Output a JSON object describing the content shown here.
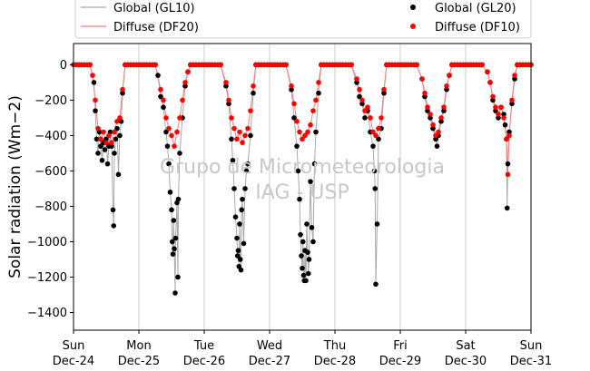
{
  "chart_data": {
    "type": "scatter",
    "ylabel": "Solar radiation (Wm−2)",
    "xlabel": "",
    "ylim": [
      -1500,
      120
    ],
    "y_ticks": [
      0,
      -200,
      -400,
      -600,
      -800,
      -1000,
      -1200,
      -1400
    ],
    "x_range": [
      "2017-12-24",
      "2017-12-31"
    ],
    "x_ticks": [
      {
        "date": "2017-12-24",
        "weekday": "Sun",
        "day": "Dec-24"
      },
      {
        "date": "2017-12-25",
        "weekday": "Mon",
        "day": "Dec-25"
      },
      {
        "date": "2017-12-26",
        "weekday": "Tue",
        "day": "Dec-26"
      },
      {
        "date": "2017-12-27",
        "weekday": "Wed",
        "day": "Dec-27"
      },
      {
        "date": "2017-12-28",
        "weekday": "Thu",
        "day": "Dec-28"
      },
      {
        "date": "2017-12-29",
        "weekday": "Fri",
        "day": "Dec-29"
      },
      {
        "date": "2017-12-30",
        "weekday": "Sat",
        "day": "Dec-30"
      },
      {
        "date": "2017-12-31",
        "weekday": "Sun",
        "day": "Dec-31"
      }
    ],
    "x_grid": true,
    "y_grid": false,
    "legend": {
      "placement": "top",
      "entries": [
        {
          "label": "Global (GL10)",
          "style": "line",
          "color": "#aaaaaa"
        },
        {
          "label": "Diffuse (DF20)",
          "style": "line",
          "color": "#f08080"
        },
        {
          "label": "Global (GL20)",
          "style": "marker",
          "color": "#000000"
        },
        {
          "label": "Diffuse (DF10)",
          "style": "marker",
          "color": "#ff0000"
        }
      ]
    },
    "watermark": [
      "Grupo de Micrometeorologia",
      "IAG - USP"
    ],
    "series": [
      {
        "name": "Global (GL20)",
        "color": "#000000",
        "kind": "marker",
        "points": [
          [
            "2017-12-24 06:00",
            0
          ],
          [
            "2017-12-24 07:30",
            -100
          ],
          [
            "2017-12-24 08:00",
            -260
          ],
          [
            "2017-12-24 08:30",
            -420
          ],
          [
            "2017-12-24 09:00",
            -500
          ],
          [
            "2017-12-24 09:30",
            -380
          ],
          [
            "2017-12-24 10:00",
            -460
          ],
          [
            "2017-12-24 10:30",
            -540
          ],
          [
            "2017-12-24 11:00",
            -440
          ],
          [
            "2017-12-24 11:30",
            -480
          ],
          [
            "2017-12-24 12:00",
            -420
          ],
          [
            "2017-12-24 12:30",
            -560
          ],
          [
            "2017-12-24 13:00",
            -460
          ],
          [
            "2017-12-24 13:30",
            -380
          ],
          [
            "2017-12-24 14:00",
            -460
          ],
          [
            "2017-12-24 14:30",
            -820
          ],
          [
            "2017-12-24 14:45",
            -910
          ],
          [
            "2017-12-24 15:00",
            -500
          ],
          [
            "2017-12-24 15:30",
            -420
          ],
          [
            "2017-12-24 16:00",
            -360
          ],
          [
            "2017-12-24 16:30",
            -620
          ],
          [
            "2017-12-24 17:00",
            -400
          ],
          [
            "2017-12-24 17:30",
            -320
          ],
          [
            "2017-12-24 18:00",
            -160
          ],
          [
            "2017-12-24 19:00",
            0
          ],
          [
            "2017-12-25 06:00",
            0
          ],
          [
            "2017-12-25 07:00",
            -60
          ],
          [
            "2017-12-25 08:00",
            -180
          ],
          [
            "2017-12-25 09:00",
            -240
          ],
          [
            "2017-12-25 10:00",
            -380
          ],
          [
            "2017-12-25 10:30",
            -460
          ],
          [
            "2017-12-25 11:00",
            -560
          ],
          [
            "2017-12-25 11:30",
            -720
          ],
          [
            "2017-12-25 12:00",
            -820
          ],
          [
            "2017-12-25 12:15",
            -1000
          ],
          [
            "2017-12-25 12:30",
            -1070
          ],
          [
            "2017-12-25 12:45",
            -880
          ],
          [
            "2017-12-25 13:00",
            -1040
          ],
          [
            "2017-12-25 13:20",
            -1290
          ],
          [
            "2017-12-25 13:30",
            -980
          ],
          [
            "2017-12-25 14:00",
            -780
          ],
          [
            "2017-12-25 14:20",
            -1200
          ],
          [
            "2017-12-25 14:30",
            -760
          ],
          [
            "2017-12-25 15:00",
            -500
          ],
          [
            "2017-12-25 16:00",
            -300
          ],
          [
            "2017-12-25 17:00",
            -120
          ],
          [
            "2017-12-25 18:00",
            -40
          ],
          [
            "2017-12-25 19:00",
            0
          ],
          [
            "2017-12-26 06:00",
            0
          ],
          [
            "2017-12-26 08:00",
            -120
          ],
          [
            "2017-12-26 09:00",
            -220
          ],
          [
            "2017-12-26 10:00",
            -420
          ],
          [
            "2017-12-26 10:30",
            -540
          ],
          [
            "2017-12-26 11:00",
            -700
          ],
          [
            "2017-12-26 11:30",
            -860
          ],
          [
            "2017-12-26 12:00",
            -980
          ],
          [
            "2017-12-26 12:15",
            -1080
          ],
          [
            "2017-12-26 12:30",
            -1050
          ],
          [
            "2017-12-26 12:45",
            -1140
          ],
          [
            "2017-12-26 13:00",
            -900
          ],
          [
            "2017-12-26 13:15",
            -1100
          ],
          [
            "2017-12-26 13:30",
            -1160
          ],
          [
            "2017-12-26 13:45",
            -820
          ],
          [
            "2017-12-26 14:00",
            -760
          ],
          [
            "2017-12-26 14:30",
            -1010
          ],
          [
            "2017-12-26 15:00",
            -700
          ],
          [
            "2017-12-26 15:30",
            -600
          ],
          [
            "2017-12-26 16:00",
            -560
          ],
          [
            "2017-12-26 17:00",
            -400
          ],
          [
            "2017-12-26 18:00",
            -160
          ],
          [
            "2017-12-26 19:00",
            0
          ],
          [
            "2017-12-27 06:00",
            0
          ],
          [
            "2017-12-27 08:00",
            -140
          ],
          [
            "2017-12-27 09:00",
            -300
          ],
          [
            "2017-12-27 10:00",
            -460
          ],
          [
            "2017-12-27 10:30",
            -600
          ],
          [
            "2017-12-27 11:00",
            -760
          ],
          [
            "2017-12-27 11:20",
            -960
          ],
          [
            "2017-12-27 11:40",
            -1080
          ],
          [
            "2017-12-27 12:00",
            -1150
          ],
          [
            "2017-12-27 12:15",
            -1000
          ],
          [
            "2017-12-27 12:30",
            -1190
          ],
          [
            "2017-12-27 12:45",
            -1220
          ],
          [
            "2017-12-27 13:00",
            -1050
          ],
          [
            "2017-12-27 13:20",
            -1220
          ],
          [
            "2017-12-27 13:40",
            -900
          ],
          [
            "2017-12-27 14:00",
            -1060
          ],
          [
            "2017-12-27 14:15",
            -1180
          ],
          [
            "2017-12-27 14:30",
            -1100
          ],
          [
            "2017-12-27 15:00",
            -660
          ],
          [
            "2017-12-27 15:30",
            -920
          ],
          [
            "2017-12-27 16:00",
            -1000
          ],
          [
            "2017-12-27 16:30",
            -560
          ],
          [
            "2017-12-27 17:00",
            -380
          ],
          [
            "2017-12-27 18:00",
            -160
          ],
          [
            "2017-12-27 19:00",
            0
          ],
          [
            "2017-12-28 06:00",
            0
          ],
          [
            "2017-12-28 08:00",
            -100
          ],
          [
            "2017-12-28 09:00",
            -180
          ],
          [
            "2017-12-28 10:00",
            -220
          ],
          [
            "2017-12-28 11:00",
            -300
          ],
          [
            "2017-12-28 12:00",
            -260
          ],
          [
            "2017-12-28 13:00",
            -380
          ],
          [
            "2017-12-28 14:00",
            -460
          ],
          [
            "2017-12-28 14:30",
            -600
          ],
          [
            "2017-12-28 14:45",
            -700
          ],
          [
            "2017-12-28 15:00",
            -1240
          ],
          [
            "2017-12-28 15:30",
            -900
          ],
          [
            "2017-12-28 16:00",
            -420
          ],
          [
            "2017-12-28 17:00",
            -360
          ],
          [
            "2017-12-28 18:00",
            -160
          ],
          [
            "2017-12-28 19:00",
            0
          ],
          [
            "2017-12-29 06:00",
            0
          ],
          [
            "2017-12-29 08:00",
            -80
          ],
          [
            "2017-12-29 09:00",
            -180
          ],
          [
            "2017-12-29 10:00",
            -260
          ],
          [
            "2017-12-29 11:00",
            -300
          ],
          [
            "2017-12-29 12:00",
            -360
          ],
          [
            "2017-12-29 13:00",
            -420
          ],
          [
            "2017-12-29 13:30",
            -460
          ],
          [
            "2017-12-29 14:00",
            -400
          ],
          [
            "2017-12-29 15:00",
            -320
          ],
          [
            "2017-12-29 16:00",
            -260
          ],
          [
            "2017-12-29 17:00",
            -140
          ],
          [
            "2017-12-29 18:00",
            -60
          ],
          [
            "2017-12-29 19:00",
            0
          ],
          [
            "2017-12-30 06:00",
            0
          ],
          [
            "2017-12-30 08:00",
            -40
          ],
          [
            "2017-12-30 09:00",
            -100
          ],
          [
            "2017-12-30 10:00",
            -200
          ],
          [
            "2017-12-30 11:00",
            -260
          ],
          [
            "2017-12-30 12:00",
            -300
          ],
          [
            "2017-12-30 13:00",
            -240
          ],
          [
            "2017-12-30 14:00",
            -280
          ],
          [
            "2017-12-30 14:30",
            -340
          ],
          [
            "2017-12-30 15:00",
            -420
          ],
          [
            "2017-12-30 15:15",
            -810
          ],
          [
            "2017-12-30 15:30",
            -560
          ],
          [
            "2017-12-30 16:00",
            -380
          ],
          [
            "2017-12-30 17:00",
            -220
          ],
          [
            "2017-12-30 18:00",
            -80
          ],
          [
            "2017-12-30 19:00",
            0
          ]
        ]
      },
      {
        "name": "Diffuse (DF10)",
        "color": "#ff0000",
        "kind": "marker",
        "points": [
          [
            "2017-12-24 06:00",
            0
          ],
          [
            "2017-12-24 07:00",
            -60
          ],
          [
            "2017-12-24 08:00",
            -200
          ],
          [
            "2017-12-24 09:00",
            -360
          ],
          [
            "2017-12-24 10:00",
            -420
          ],
          [
            "2017-12-24 11:00",
            -380
          ],
          [
            "2017-12-24 12:00",
            -440
          ],
          [
            "2017-12-24 13:00",
            -400
          ],
          [
            "2017-12-24 14:00",
            -440
          ],
          [
            "2017-12-24 15:00",
            -380
          ],
          [
            "2017-12-24 16:00",
            -320
          ],
          [
            "2017-12-24 17:00",
            -300
          ],
          [
            "2017-12-24 18:00",
            -140
          ],
          [
            "2017-12-24 19:00",
            0
          ],
          [
            "2017-12-25 06:00",
            0
          ],
          [
            "2017-12-25 08:00",
            -140
          ],
          [
            "2017-12-25 09:00",
            -200
          ],
          [
            "2017-12-25 10:00",
            -300
          ],
          [
            "2017-12-25 11:00",
            -360
          ],
          [
            "2017-12-25 12:00",
            -400
          ],
          [
            "2017-12-25 13:00",
            -460
          ],
          [
            "2017-12-25 14:00",
            -380
          ],
          [
            "2017-12-25 15:00",
            -300
          ],
          [
            "2017-12-25 16:00",
            -200
          ],
          [
            "2017-12-25 17:00",
            -100
          ],
          [
            "2017-12-25 18:00",
            -40
          ],
          [
            "2017-12-25 19:00",
            0
          ],
          [
            "2017-12-26 06:00",
            0
          ],
          [
            "2017-12-26 08:00",
            -100
          ],
          [
            "2017-12-26 09:00",
            -200
          ],
          [
            "2017-12-26 10:00",
            -300
          ],
          [
            "2017-12-26 11:00",
            -360
          ],
          [
            "2017-12-26 12:00",
            -420
          ],
          [
            "2017-12-26 13:00",
            -380
          ],
          [
            "2017-12-26 14:00",
            -440
          ],
          [
            "2017-12-26 15:00",
            -400
          ],
          [
            "2017-12-26 16:00",
            -360
          ],
          [
            "2017-12-26 17:00",
            -260
          ],
          [
            "2017-12-26 18:00",
            -120
          ],
          [
            "2017-12-26 19:00",
            0
          ],
          [
            "2017-12-27 06:00",
            0
          ],
          [
            "2017-12-27 08:00",
            -120
          ],
          [
            "2017-12-27 09:00",
            -220
          ],
          [
            "2017-12-27 10:00",
            -320
          ],
          [
            "2017-12-27 11:00",
            -380
          ],
          [
            "2017-12-27 12:00",
            -420
          ],
          [
            "2017-12-27 13:00",
            -400
          ],
          [
            "2017-12-27 14:00",
            -380
          ],
          [
            "2017-12-27 15:00",
            -340
          ],
          [
            "2017-12-27 16:00",
            -260
          ],
          [
            "2017-12-27 17:00",
            -200
          ],
          [
            "2017-12-27 18:00",
            -100
          ],
          [
            "2017-12-27 19:00",
            0
          ],
          [
            "2017-12-28 06:00",
            0
          ],
          [
            "2017-12-28 08:00",
            -80
          ],
          [
            "2017-12-28 09:00",
            -140
          ],
          [
            "2017-12-28 10:00",
            -200
          ],
          [
            "2017-12-28 11:00",
            -260
          ],
          [
            "2017-12-28 12:00",
            -240
          ],
          [
            "2017-12-28 13:00",
            -300
          ],
          [
            "2017-12-28 14:00",
            -380
          ],
          [
            "2017-12-28 15:00",
            -400
          ],
          [
            "2017-12-28 16:00",
            -360
          ],
          [
            "2017-12-28 17:00",
            -300
          ],
          [
            "2017-12-28 18:00",
            -140
          ],
          [
            "2017-12-28 19:00",
            0
          ],
          [
            "2017-12-29 06:00",
            0
          ],
          [
            "2017-12-29 08:00",
            -80
          ],
          [
            "2017-12-29 09:00",
            -160
          ],
          [
            "2017-12-29 10:00",
            -240
          ],
          [
            "2017-12-29 11:00",
            -280
          ],
          [
            "2017-12-29 12:00",
            -340
          ],
          [
            "2017-12-29 13:00",
            -400
          ],
          [
            "2017-12-29 14:00",
            -380
          ],
          [
            "2017-12-29 15:00",
            -300
          ],
          [
            "2017-12-29 16:00",
            -240
          ],
          [
            "2017-12-29 17:00",
            -120
          ],
          [
            "2017-12-29 18:00",
            -60
          ],
          [
            "2017-12-29 19:00",
            0
          ],
          [
            "2017-12-30 06:00",
            0
          ],
          [
            "2017-12-30 08:00",
            -40
          ],
          [
            "2017-12-30 09:00",
            -100
          ],
          [
            "2017-12-30 10:00",
            -180
          ],
          [
            "2017-12-30 11:00",
            -240
          ],
          [
            "2017-12-30 12:00",
            -280
          ],
          [
            "2017-12-30 13:00",
            -240
          ],
          [
            "2017-12-30 14:00",
            -300
          ],
          [
            "2017-12-30 15:00",
            -420
          ],
          [
            "2017-12-30 15:30",
            -620
          ],
          [
            "2017-12-30 16:00",
            -400
          ],
          [
            "2017-12-30 17:00",
            -200
          ],
          [
            "2017-12-30 18:00",
            -60
          ],
          [
            "2017-12-30 19:00",
            0
          ]
        ]
      }
    ]
  }
}
